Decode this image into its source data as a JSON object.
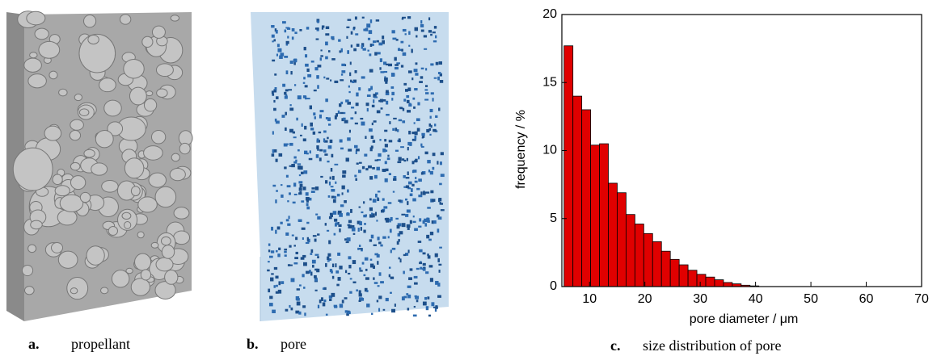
{
  "panels": [
    {
      "label": "a.",
      "caption": "propellant"
    },
    {
      "label": "b.",
      "caption": "pore"
    },
    {
      "label": "c.",
      "caption": "size distribution of pore"
    }
  ],
  "chart_data": {
    "type": "histogram",
    "xlabel": "pore diameter / μm",
    "ylabel": "frequency / %",
    "bins": [
      5.4,
      7.0,
      8.6,
      10.2,
      11.8,
      13.4,
      15.0,
      16.6,
      18.2,
      19.8,
      21.4,
      23.0,
      24.6,
      26.2,
      27.8,
      29.4,
      31.0,
      32.6,
      34.2,
      35.8,
      37.4,
      39.0,
      40.6
    ],
    "values": [
      17.7,
      14.0,
      13.0,
      10.4,
      10.5,
      7.6,
      6.9,
      5.3,
      4.6,
      3.9,
      3.3,
      2.6,
      2.0,
      1.6,
      1.2,
      0.9,
      0.7,
      0.5,
      0.3,
      0.2,
      0.1,
      0.05
    ],
    "color": "#e00000",
    "xlim": [
      5,
      70
    ],
    "xticks": [
      10,
      20,
      30,
      40,
      50,
      60,
      70
    ],
    "ylim": [
      0,
      20
    ],
    "yticks": [
      0,
      5,
      10,
      15,
      20
    ]
  }
}
